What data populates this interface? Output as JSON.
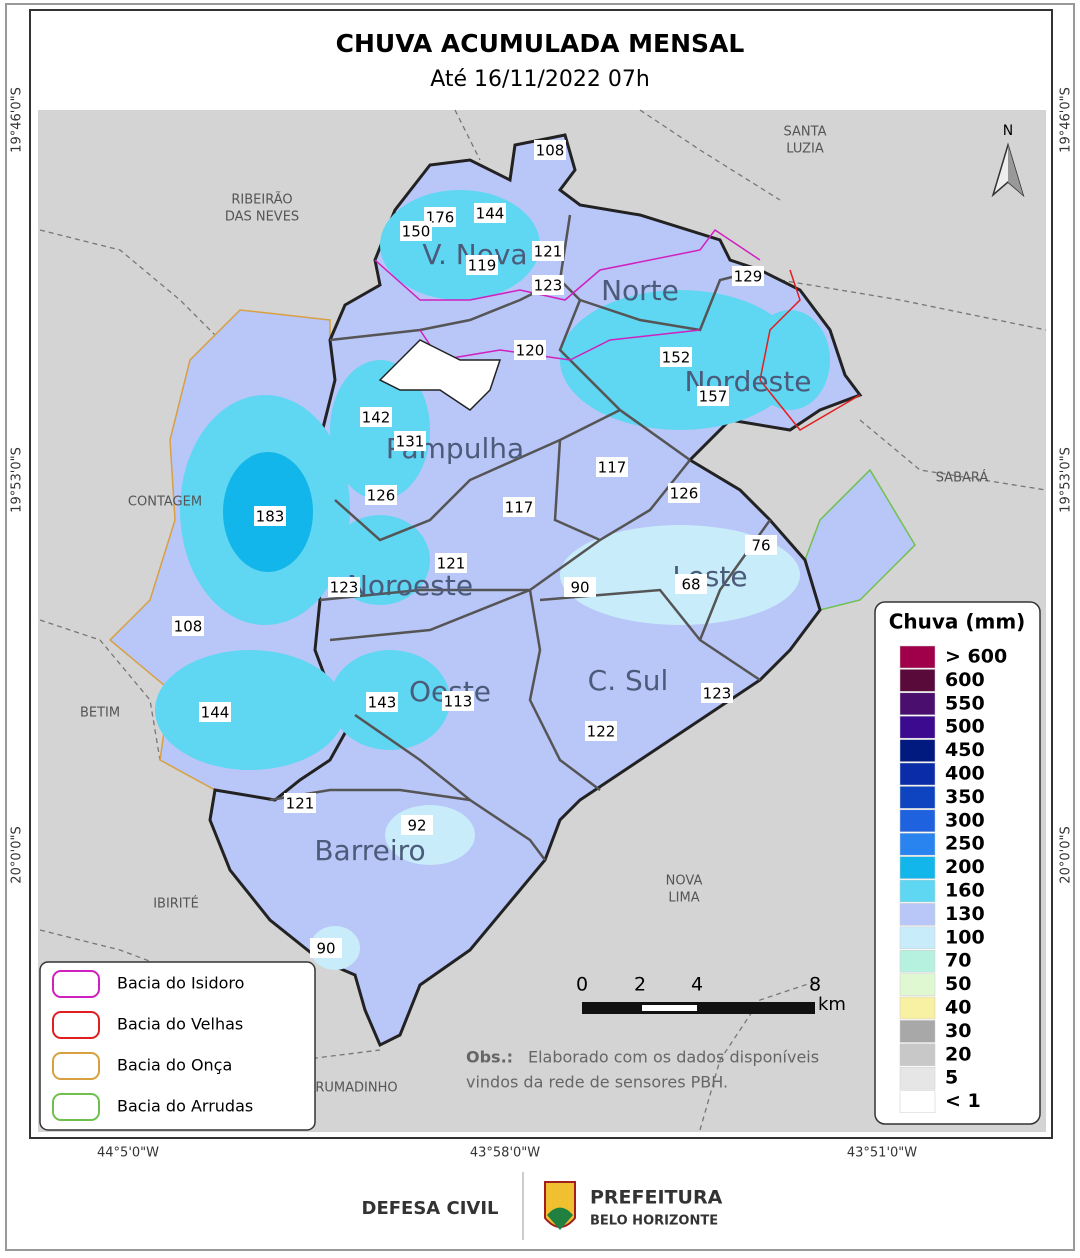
{
  "header": {
    "title": "CHUVA ACUMULADA MENSAL",
    "subtitle": "Até 16/11/2022 07h"
  },
  "coordinates": {
    "latitude": [
      "19°46'0\"S",
      "19°53'0\"S",
      "20°0'0\"S"
    ],
    "longitude": [
      "44°5'0\"W",
      "43°58'0\"W",
      "43°51'0\"W"
    ]
  },
  "north": "N",
  "cities": [
    {
      "lines": [
        "SANTA",
        "LUZIA"
      ]
    },
    {
      "lines": [
        "RIBEIRÃO",
        "DAS NEVES"
      ]
    },
    {
      "lines": [
        "CONTAGEM"
      ]
    },
    {
      "lines": [
        "SABARÁ"
      ]
    },
    {
      "lines": [
        "BETIM"
      ]
    },
    {
      "lines": [
        "IBIRITÉ"
      ]
    },
    {
      "lines": [
        "NOVA",
        "LIMA"
      ]
    },
    {
      "lines": [
        "BRUMADINHO"
      ]
    }
  ],
  "regions": [
    "V. Nova",
    "Norte",
    "Nordeste",
    "Pampulha",
    "Noroeste",
    "Leste",
    "Oeste",
    "C. Sul",
    "Barreiro"
  ],
  "stations": [
    108,
    176,
    144,
    150,
    121,
    119,
    123,
    129,
    120,
    152,
    157,
    142,
    131,
    117,
    126,
    117,
    126,
    183,
    76,
    121,
    123,
    90,
    68,
    108,
    143,
    113,
    123,
    144,
    122,
    121,
    92,
    90
  ],
  "rain_legend": {
    "title": "Chuva (mm)",
    "items": [
      {
        "label": "> 600",
        "color": "#a0004a"
      },
      {
        "label": "600",
        "color": "#5a0a3a"
      },
      {
        "label": "550",
        "color": "#4a0f6e"
      },
      {
        "label": "500",
        "color": "#3b0a8f"
      },
      {
        "label": "450",
        "color": "#001a80"
      },
      {
        "label": "400",
        "color": "#0a2ca8"
      },
      {
        "label": "350",
        "color": "#0f44c0"
      },
      {
        "label": "300",
        "color": "#1f62e0"
      },
      {
        "label": "250",
        "color": "#2a84f0"
      },
      {
        "label": "200",
        "color": "#12b6ea"
      },
      {
        "label": "160",
        "color": "#5fd6f2"
      },
      {
        "label": "130",
        "color": "#b9c6f8"
      },
      {
        "label": "100",
        "color": "#c8ecfa"
      },
      {
        "label": "70",
        "color": "#b6f0df"
      },
      {
        "label": "50",
        "color": "#e0f8d2"
      },
      {
        "label": "40",
        "color": "#f8f0a2"
      },
      {
        "label": "30",
        "color": "#a8a8a8"
      },
      {
        "label": "20",
        "color": "#c8c8c8"
      },
      {
        "label": "5",
        "color": "#e6e6e6"
      },
      {
        "label": "< 1",
        "color": "#ffffff"
      }
    ]
  },
  "basin_legend": [
    {
      "label": "Bacia do Isidoro",
      "color": "#d020c0"
    },
    {
      "label": "Bacia do Velhas",
      "color": "#e02020"
    },
    {
      "label": "Bacia do Onça",
      "color": "#d8a040"
    },
    {
      "label": "Bacia do Arrudas",
      "color": "#70c050"
    }
  ],
  "scale": {
    "ticks": [
      "0",
      "2",
      "4",
      "8"
    ],
    "unit": "km"
  },
  "note": {
    "label": "Obs.:",
    "lines": [
      "Elaborado com os dados disponíveis",
      "vindos da rede de sensores PBH."
    ]
  },
  "footer": {
    "left": "DEFESA CIVIL",
    "right_title": "PREFEITURA",
    "right_subtitle": "BELO HORIZONTE"
  }
}
